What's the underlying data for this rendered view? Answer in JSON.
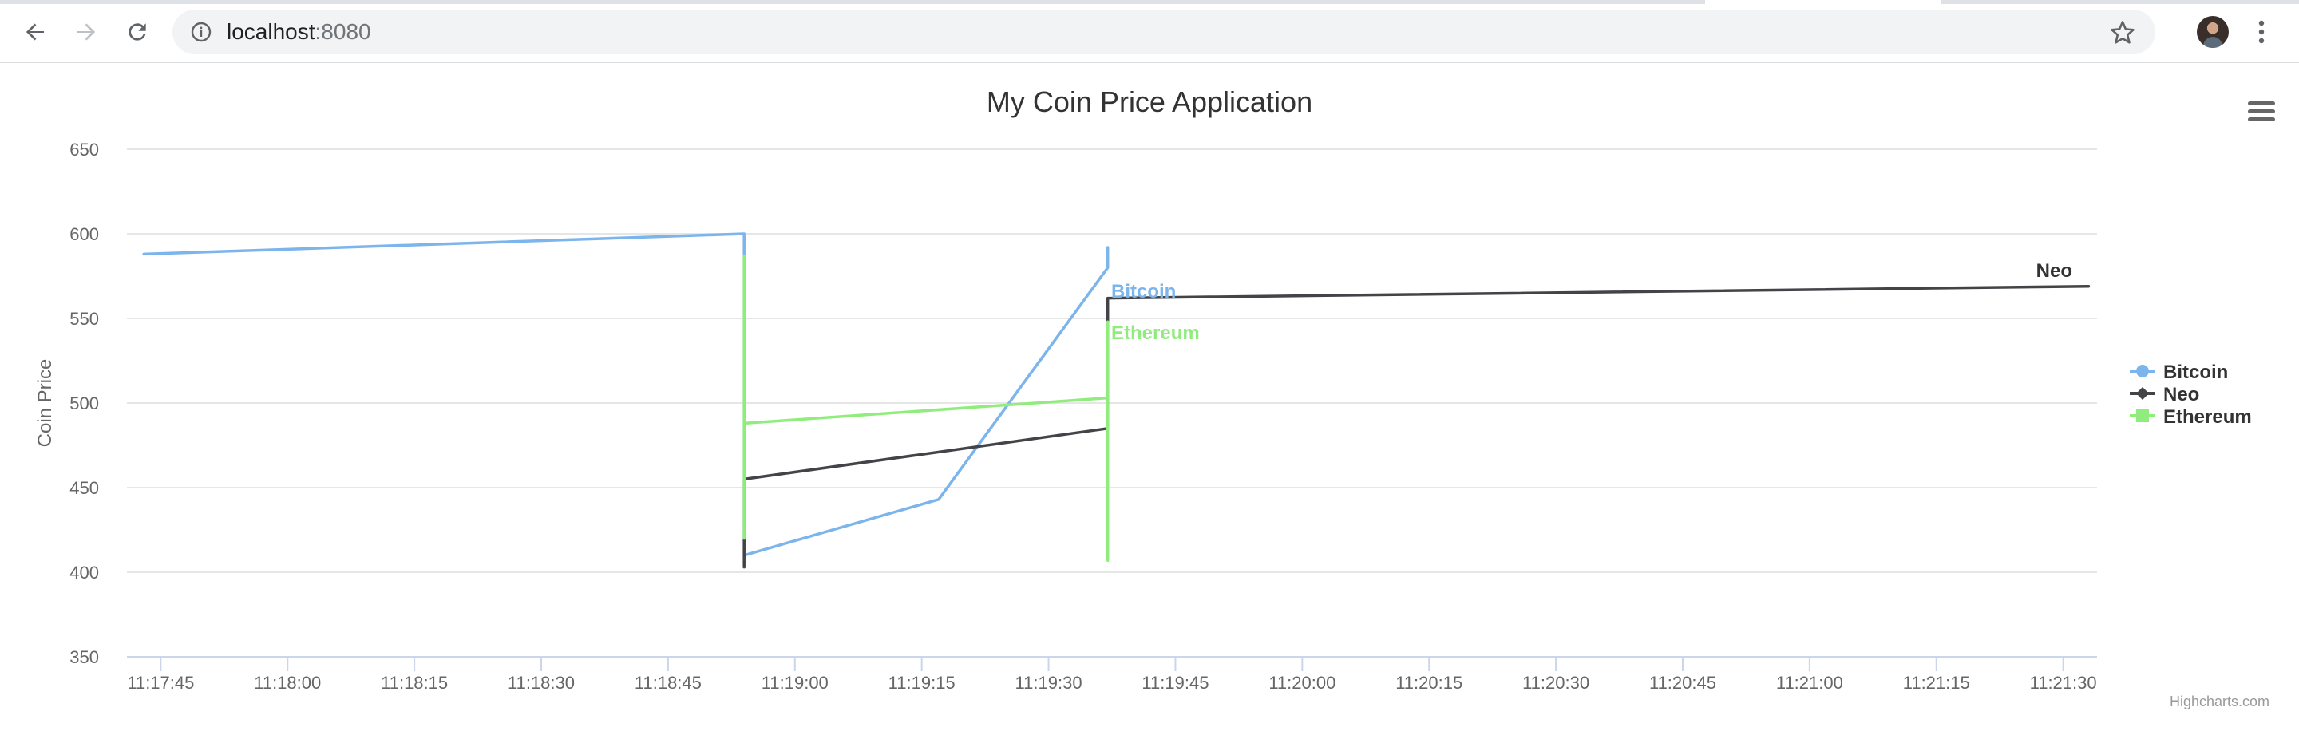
{
  "browser": {
    "url_host": "localhost",
    "url_port": ":8080",
    "icons": {
      "back": "back-arrow-icon",
      "forward": "forward-arrow-icon",
      "reload": "reload-icon",
      "site_info": "info-icon",
      "bookmark": "star-icon",
      "menu": "vertical-dots-icon"
    }
  },
  "chart": {
    "credits": "Highcharts.com",
    "context_menu_icon": "hamburger-menu-icon"
  },
  "chart_data": {
    "type": "line",
    "title": "My Coin Price Application",
    "xlabel": "",
    "ylabel": "Coin Price",
    "xlim": [
      "11:17:41",
      "11:21:34"
    ],
    "ylim": [
      350,
      650
    ],
    "y_ticks": [
      350,
      400,
      450,
      500,
      550,
      600,
      650
    ],
    "x_ticks": [
      "11:17:45",
      "11:18:00",
      "11:18:15",
      "11:18:30",
      "11:18:45",
      "11:19:00",
      "11:19:15",
      "11:19:30",
      "11:19:45",
      "11:20:00",
      "11:20:15",
      "11:20:30",
      "11:20:45",
      "11:21:00",
      "11:21:15",
      "11:21:30"
    ],
    "grid": true,
    "legend_position": "right",
    "series": [
      {
        "name": "Bitcoin",
        "color": "#7cb5ec",
        "marker": "circle",
        "points": [
          {
            "x": "11:17:43",
            "y": 588
          },
          {
            "x": "11:18:54",
            "y": 600
          },
          {
            "x": "11:18:54",
            "y": 487
          },
          {
            "x": "11:18:54",
            "y": 410
          },
          {
            "x": "11:19:17",
            "y": 443
          },
          {
            "x": "11:19:37",
            "y": 580
          },
          {
            "x": "11:19:37",
            "y": 592
          }
        ],
        "end_label": "Bitcoin"
      },
      {
        "name": "Neo",
        "color": "#434348",
        "marker": "diamond",
        "points": [
          {
            "x": "11:18:54",
            "y": 425
          },
          {
            "x": "11:18:54",
            "y": 403
          },
          {
            "x": "11:18:54",
            "y": 455
          },
          {
            "x": "11:19:37",
            "y": 485
          },
          {
            "x": "11:19:37",
            "y": 553
          },
          {
            "x": "11:19:37",
            "y": 562
          },
          {
            "x": "11:21:33",
            "y": 569
          }
        ],
        "end_label": "Neo"
      },
      {
        "name": "Ethereum",
        "color": "#90ed7d",
        "marker": "square",
        "points": [
          {
            "x": "11:18:54",
            "y": 587
          },
          {
            "x": "11:18:54",
            "y": 420
          },
          {
            "x": "11:18:54",
            "y": 488
          },
          {
            "x": "11:19:37",
            "y": 503
          },
          {
            "x": "11:19:37",
            "y": 407
          },
          {
            "x": "11:19:37",
            "y": 548
          }
        ],
        "end_label": "Ethereum"
      }
    ]
  }
}
